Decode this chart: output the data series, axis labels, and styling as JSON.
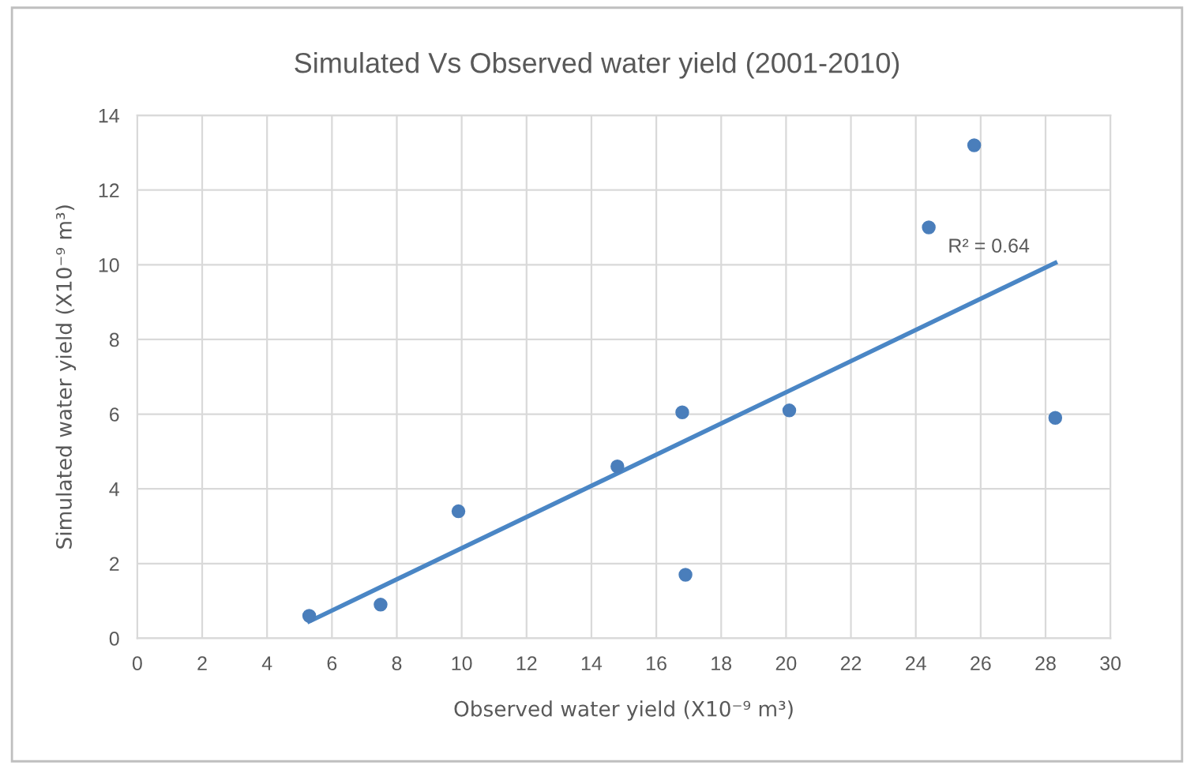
{
  "chart_data": {
    "type": "scatter",
    "title": "Simulated Vs Observed water yield (2001-2010)",
    "xlabel": "Observed water yield (X10⁻⁹ m³)",
    "ylabel": "Simulated water yield (X10⁻⁹ m³)",
    "series": [
      {
        "color": "#4a7ebb",
        "marker": "circle",
        "x": [
          5.3,
          7.5,
          9.9,
          14.8,
          16.8,
          16.9,
          20.1,
          24.4,
          25.8,
          28.3
        ],
        "values": [
          0.6,
          0.9,
          3.4,
          4.6,
          6.05,
          1.7,
          6.1,
          11.0,
          13.2,
          5.9
        ]
      },
      {
        "type": "line",
        "marker": "none",
        "color": "#4a86c5",
        "x": [
          5.3,
          28.3
        ],
        "values": [
          0.45,
          10.05
        ]
      }
    ],
    "annotations": [
      "R² = 0.64"
    ],
    "xlim": [
      0,
      30
    ],
    "xticks": [
      0,
      2,
      4,
      6,
      8,
      10,
      12,
      14,
      16,
      18,
      20,
      22,
      24,
      26,
      28,
      30
    ],
    "ylim": [
      0,
      14
    ],
    "yticks": [
      0,
      2,
      4,
      6,
      8,
      10,
      12,
      14
    ],
    "grid": true
  }
}
